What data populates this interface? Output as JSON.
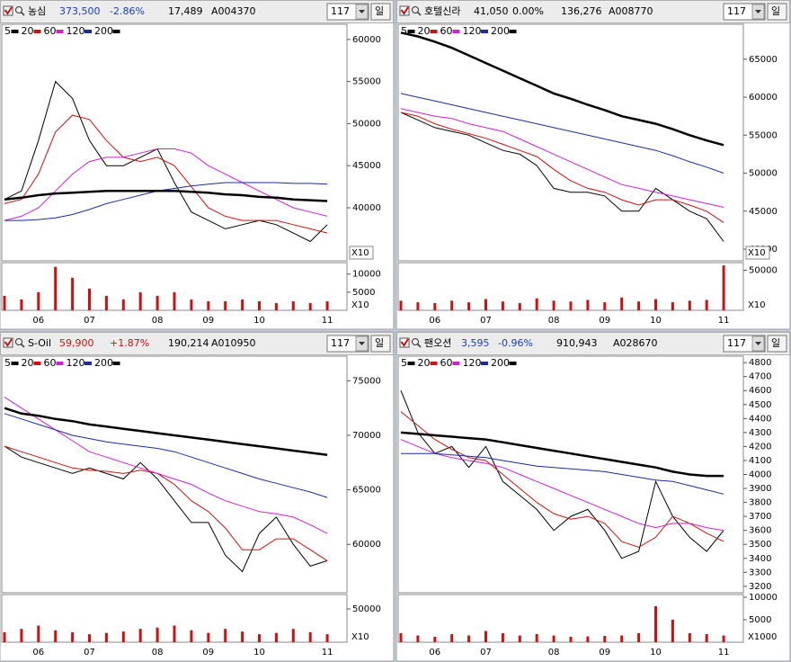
{
  "panels": [
    {
      "header": {
        "name": "농심",
        "price": "373,500",
        "change": "-2.86%",
        "volume": "17,489",
        "code": "A004370",
        "period": "117",
        "unit": "일",
        "color": "#1a3cc8"
      }
    },
    {
      "header": {
        "name": "호텔신라",
        "price": "41,050",
        "change": "0.00%",
        "volume": "136,276",
        "code": "A008770",
        "period": "117",
        "unit": "일",
        "color": "#000000"
      }
    },
    {
      "header": {
        "name": "S-Oil",
        "price": "59,900",
        "change": "+1.87%",
        "volume": "190,214",
        "code": "A010950",
        "period": "117",
        "unit": "일",
        "color": "#d01010"
      }
    },
    {
      "header": {
        "name": "팬오션",
        "price": "3,595",
        "change": "-0.96%",
        "volume": "910,943",
        "code": "A028670",
        "period": "117",
        "unit": "일",
        "color": "#1a3cc8"
      }
    }
  ],
  "chart_data": [
    {
      "type": "line",
      "categories": [
        null,
        null,
        "06",
        null,
        null,
        "07",
        null,
        null,
        null,
        "08",
        null,
        null,
        "09",
        null,
        null,
        "10",
        null,
        null,
        null,
        "11"
      ],
      "ylim": [
        33700,
        61800
      ],
      "yticks": [
        60000,
        55000,
        50000,
        45000,
        40000
      ],
      "price_unit": "X10",
      "series": [
        {
          "name": "5",
          "color": "#000000",
          "values": [
            41000,
            42000,
            48000,
            55000,
            53000,
            48000,
            45000,
            45000,
            46000,
            47000,
            43000,
            39500,
            38500,
            37500,
            38000,
            38500,
            38000,
            37000,
            36000,
            38000
          ]
        },
        {
          "name": "20",
          "color": "#d01010",
          "values": [
            40500,
            41000,
            44000,
            49000,
            51000,
            50500,
            48000,
            46000,
            45500,
            46000,
            45000,
            42500,
            40000,
            39000,
            38500,
            38500,
            38500,
            38000,
            37500,
            37000
          ]
        },
        {
          "name": "60",
          "color": "#d020d0",
          "values": [
            38500,
            39000,
            40000,
            42000,
            44000,
            45500,
            46000,
            46000,
            46500,
            47000,
            47000,
            46500,
            45000,
            44000,
            43000,
            42000,
            41000,
            40000,
            39500,
            39000
          ]
        },
        {
          "name": "120",
          "color": "#1a2ca0",
          "values": [
            38500,
            38500,
            38600,
            38800,
            39200,
            39800,
            40500,
            41000,
            41500,
            42000,
            42300,
            42600,
            42800,
            43000,
            43000,
            43000,
            43000,
            42900,
            42900,
            42800
          ]
        },
        {
          "name": "200",
          "color": "#000000",
          "values": [
            41000,
            41200,
            41500,
            41700,
            41800,
            41900,
            42000,
            42000,
            42000,
            42000,
            42000,
            41900,
            41800,
            41600,
            41500,
            41300,
            41200,
            41000,
            40900,
            40800
          ]
        }
      ],
      "volume": {
        "color": "#d01010",
        "ylim": [
          0,
          13160
        ],
        "yticks": [
          10000,
          5000
        ],
        "unit": "X10",
        "values": [
          4000,
          3000,
          5000,
          12000,
          9000,
          6000,
          4000,
          3000,
          5000,
          4000,
          5000,
          3000,
          2500,
          2500,
          3000,
          2500,
          2000,
          2500,
          2000,
          2500
        ]
      }
    },
    {
      "type": "line",
      "categories": [
        null,
        null,
        "06",
        null,
        null,
        "07",
        null,
        null,
        null,
        "08",
        null,
        null,
        "09",
        null,
        null,
        "10",
        null,
        null,
        null,
        "11"
      ],
      "ylim": [
        38460,
        69600
      ],
      "yticks": [
        65000,
        60000,
        55000,
        50000,
        45000,
        40000
      ],
      "price_unit": "X10",
      "series": [
        {
          "name": "5",
          "color": "#000000",
          "values": [
            58000,
            57000,
            56000,
            55500,
            55000,
            54000,
            53000,
            52500,
            51000,
            48000,
            47500,
            47500,
            47000,
            45000,
            45000,
            48000,
            46500,
            45000,
            44000,
            41000
          ]
        },
        {
          "name": "20",
          "color": "#d01010",
          "values": [
            58000,
            57500,
            56500,
            55800,
            55200,
            54600,
            53800,
            53000,
            52200,
            50500,
            49000,
            48000,
            47500,
            46500,
            45800,
            46500,
            46500,
            45800,
            45000,
            43500
          ]
        },
        {
          "name": "60",
          "color": "#d020d0",
          "values": [
            58500,
            58000,
            57500,
            57200,
            56500,
            56000,
            55500,
            54500,
            53500,
            52500,
            51500,
            50500,
            49500,
            48500,
            48000,
            47500,
            47000,
            46500,
            46000,
            45500
          ]
        },
        {
          "name": "120",
          "color": "#1a2ca0",
          "values": [
            60500,
            60000,
            59500,
            59000,
            58500,
            58000,
            57500,
            57000,
            56500,
            56000,
            55500,
            55000,
            54500,
            54000,
            53500,
            53000,
            52300,
            51500,
            50800,
            50000
          ]
        },
        {
          "name": "200",
          "color": "#000000",
          "values": [
            68500,
            68000,
            67300,
            66500,
            65500,
            64500,
            63500,
            62500,
            61500,
            60500,
            59800,
            59000,
            58300,
            57500,
            57000,
            56500,
            55800,
            55000,
            54300,
            53700
          ]
        }
      ],
      "volume": {
        "color": "#d01010",
        "ylim": [
          0,
          59500
        ],
        "yticks": [
          50000
        ],
        "unit": "X10",
        "values": [
          12000,
          10000,
          9000,
          12000,
          10000,
          14000,
          11000,
          9000,
          15000,
          12000,
          11000,
          13000,
          10000,
          16000,
          11000,
          14000,
          10000,
          12000,
          13000,
          56000
        ]
      }
    },
    {
      "type": "line",
      "categories": [
        null,
        null,
        "06",
        null,
        null,
        "07",
        null,
        null,
        null,
        "08",
        null,
        null,
        "09",
        null,
        null,
        "10",
        null,
        null,
        null,
        "11"
      ],
      "ylim": [
        55560,
        77260
      ],
      "yticks": [
        75000,
        70000,
        65000,
        60000
      ],
      "series": [
        {
          "name": "5",
          "color": "#000000",
          "values": [
            69000,
            68000,
            67500,
            67000,
            66500,
            67000,
            66500,
            66000,
            67500,
            66000,
            64000,
            62000,
            62000,
            59000,
            57500,
            61000,
            62500,
            60000,
            58000,
            58500
          ]
        },
        {
          "name": "20",
          "color": "#d01010",
          "values": [
            69000,
            68500,
            68000,
            67500,
            67000,
            66800,
            66700,
            66500,
            66800,
            66500,
            65500,
            64000,
            63000,
            61500,
            59500,
            59500,
            60500,
            60500,
            59500,
            58500
          ]
        },
        {
          "name": "60",
          "color": "#d020d0",
          "values": [
            73500,
            72500,
            71500,
            70500,
            69500,
            68500,
            68000,
            67500,
            67000,
            66500,
            66000,
            65500,
            64700,
            64000,
            63500,
            63000,
            62800,
            62500,
            61800,
            61000
          ]
        },
        {
          "name": "120",
          "color": "#1a2ca0",
          "values": [
            72000,
            71500,
            71000,
            70500,
            70000,
            69700,
            69400,
            69200,
            69000,
            68800,
            68500,
            68000,
            67500,
            67000,
            66500,
            66000,
            65600,
            65200,
            64800,
            64300
          ]
        },
        {
          "name": "200",
          "color": "#000000",
          "values": [
            72500,
            72000,
            71800,
            71500,
            71300,
            71000,
            70800,
            70600,
            70400,
            70200,
            70000,
            69800,
            69600,
            69400,
            69200,
            69000,
            68800,
            68600,
            68400,
            68200
          ]
        }
      ],
      "volume": {
        "color": "#d01010",
        "ylim": [
          0,
          71600
        ],
        "yticks": [
          50000
        ],
        "unit": "X10",
        "values": [
          15000,
          20000,
          25000,
          18000,
          15000,
          12000,
          14000,
          16000,
          20000,
          22000,
          25000,
          18000,
          14000,
          20000,
          16000,
          12000,
          14000,
          20000,
          15000,
          12000
        ]
      }
    },
    {
      "type": "line",
      "categories": [
        null,
        null,
        "06",
        null,
        null,
        "07",
        null,
        null,
        null,
        "08",
        null,
        null,
        "09",
        null,
        null,
        "10",
        null,
        null,
        null,
        "11"
      ],
      "ylim": [
        3154,
        4846
      ],
      "yticks": [
        4800,
        4700,
        4600,
        4500,
        4400,
        4300,
        4200,
        4100,
        4000,
        3900,
        3800,
        3700,
        3600,
        3500,
        3400,
        3300,
        3200
      ],
      "series": [
        {
          "name": "5",
          "color": "#000000",
          "values": [
            4600,
            4300,
            4150,
            4200,
            4050,
            4200,
            3950,
            3850,
            3750,
            3600,
            3700,
            3750,
            3600,
            3400,
            3450,
            3950,
            3700,
            3550,
            3450,
            3600
          ]
        },
        {
          "name": "20",
          "color": "#d01010",
          "values": [
            4450,
            4350,
            4250,
            4180,
            4120,
            4100,
            4000,
            3900,
            3800,
            3720,
            3680,
            3700,
            3650,
            3520,
            3480,
            3550,
            3700,
            3650,
            3580,
            3520
          ]
        },
        {
          "name": "60",
          "color": "#d020d0",
          "values": [
            4250,
            4200,
            4150,
            4120,
            4100,
            4080,
            4050,
            4000,
            3950,
            3900,
            3850,
            3800,
            3750,
            3700,
            3650,
            3620,
            3650,
            3650,
            3620,
            3600
          ]
        },
        {
          "name": "120",
          "color": "#1a2ca0",
          "values": [
            4150,
            4150,
            4150,
            4140,
            4130,
            4120,
            4100,
            4080,
            4060,
            4050,
            4040,
            4030,
            4020,
            4000,
            3980,
            3960,
            3950,
            3920,
            3890,
            3860
          ]
        },
        {
          "name": "200",
          "color": "#000000",
          "values": [
            4300,
            4290,
            4280,
            4270,
            4260,
            4250,
            4230,
            4210,
            4190,
            4170,
            4150,
            4130,
            4110,
            4090,
            4070,
            4050,
            4020,
            4000,
            3990,
            3990
          ]
        }
      ],
      "volume": {
        "color": "#d01010",
        "ylim": [
          0,
          10600
        ],
        "yticks": [
          10000,
          5000
        ],
        "unit": "X1000",
        "values": [
          2000,
          1500,
          1200,
          1800,
          1500,
          2500,
          2000,
          1500,
          1800,
          1500,
          1200,
          1300,
          1400,
          1500,
          2000,
          8000,
          5000,
          2000,
          1800,
          1500
        ]
      }
    }
  ]
}
